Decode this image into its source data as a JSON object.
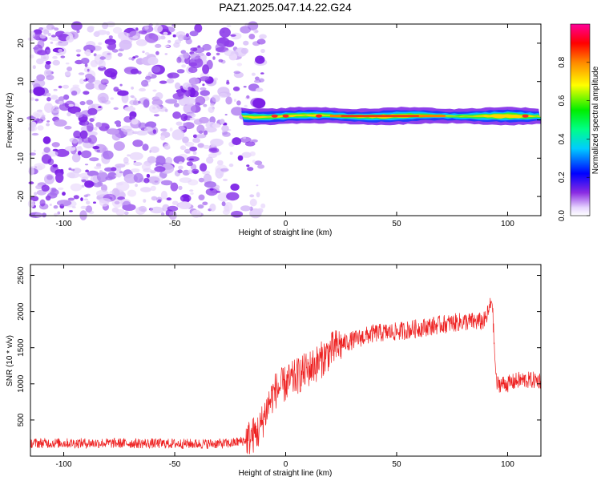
{
  "title": "PAZ1.2025.047.14.22.G24",
  "chart_data": [
    {
      "type": "heatmap",
      "xlabel": "Height of straight line (km)",
      "ylabel": "Frequency (Hz)",
      "xlim": [
        -115,
        115
      ],
      "ylim": [
        -25,
        25
      ],
      "xticks": [
        -100,
        -50,
        0,
        50,
        100
      ],
      "yticks": [
        -20,
        -10,
        0,
        10,
        20
      ],
      "colorbar": {
        "label": "Normalized spectral amplitude",
        "range": [
          0,
          1
        ],
        "ticks": [
          0.0,
          0.2,
          0.4,
          0.6,
          0.8
        ],
        "tick_labels": [
          "0.0",
          "0.2",
          "0.4",
          "0.6",
          "0.8"
        ]
      },
      "features": {
        "noise_region_km": [
          -115,
          -15
        ],
        "signal_band_center_hz": 1.0,
        "signal_band_halfwidth_hz": 1.0,
        "signal_region_km": [
          -20,
          115
        ]
      }
    },
    {
      "type": "line",
      "xlabel": "Height of straight line (km)",
      "ylabel": "SNR (10 * v/v)",
      "xlim": [
        -115,
        115
      ],
      "ylim": [
        0,
        2650
      ],
      "xticks": [
        -100,
        -50,
        0,
        50,
        100
      ],
      "yticks": [
        500,
        1000,
        1500,
        2000,
        2500
      ],
      "series": [
        {
          "color": "#ee2222",
          "x": [
            -115,
            -100,
            -80,
            -60,
            -40,
            -25,
            -18,
            -12,
            -8,
            -5,
            0,
            5,
            10,
            15,
            20,
            25,
            30,
            35,
            40,
            50,
            60,
            70,
            80,
            88,
            90,
            92,
            93,
            94,
            95,
            100,
            105,
            110,
            115
          ],
          "y": [
            180,
            180,
            180,
            175,
            170,
            175,
            220,
            350,
            700,
            900,
            1000,
            1100,
            1200,
            1300,
            1450,
            1550,
            1600,
            1650,
            1700,
            1720,
            1770,
            1820,
            1860,
            1860,
            1880,
            2050,
            2200,
            1500,
            1000,
            1000,
            1050,
            1050,
            1050
          ]
        }
      ]
    }
  ]
}
